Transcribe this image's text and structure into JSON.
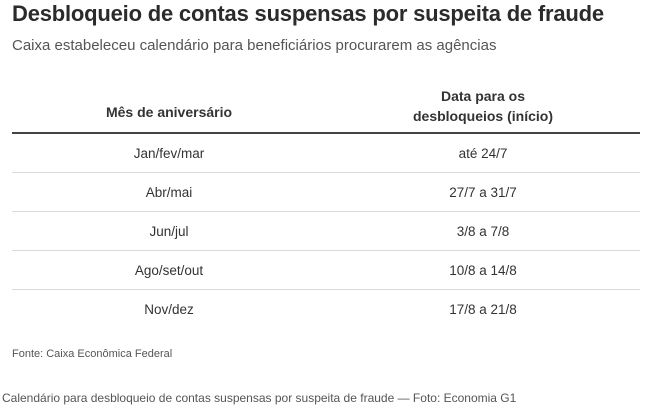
{
  "title": "Desbloqueio de contas suspensas por suspeita de fraude",
  "subtitle": "Caixa estabeleceu calendário para beneficiários procurarem as agências",
  "table": {
    "headers": {
      "month": "Mês de aniversário",
      "date_line1": "Data para os",
      "date_line2": "desbloqueios (início)"
    },
    "rows": [
      {
        "month": "Jan/fev/mar",
        "date": "até 24/7"
      },
      {
        "month": "Abr/mai",
        "date": "27/7 a 31/7"
      },
      {
        "month": "Jun/jul",
        "date": "3/8 a 7/8"
      },
      {
        "month": "Ago/set/out",
        "date": "10/8 a 14/8"
      },
      {
        "month": "Nov/dez",
        "date": "17/8 a 21/8"
      }
    ]
  },
  "source": "Fonte: Caixa Econômica Federal",
  "caption": "Calendário para desbloqueio de contas suspensas por suspeita de fraude — Foto: Economia G1"
}
